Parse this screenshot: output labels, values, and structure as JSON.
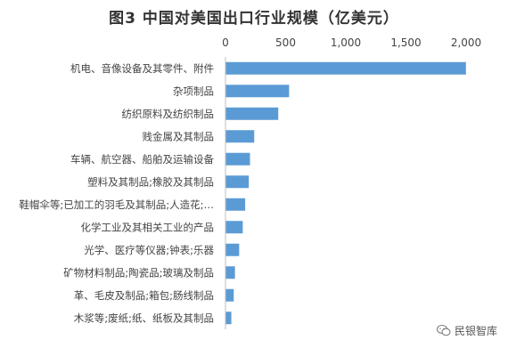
{
  "chart_data": {
    "type": "bar",
    "orientation": "horizontal",
    "title": "图3  中国对美国出口行业规模（亿美元）",
    "x_ticks": [
      "0",
      "500",
      "1,000",
      "1,500",
      "2,000"
    ],
    "xlim": [
      0,
      2000
    ],
    "x_axis_position": "top",
    "grid": false,
    "color": "#5b9bd5",
    "categories": [
      "机电、音像设备及其零件、附件",
      "杂项制品",
      "纺织原料及纺织制品",
      "贱金属及其制品",
      "车辆、航空器、船舶及运输设备",
      "塑料及其制品;橡胶及其制品",
      "鞋帽伞等;已加工的羽毛及其制品;人造花;…",
      "化学工业及其相关工业的产品",
      "光学、医疗等仪器;钟表;乐器",
      "矿物材料制品;陶瓷品;玻璃及制品",
      "革、毛皮及制品;箱包;肠线制品",
      "木浆等;废纸;纸、纸板及其制品"
    ],
    "values": [
      1995,
      525,
      435,
      235,
      200,
      190,
      160,
      140,
      110,
      75,
      65,
      45
    ]
  },
  "watermark": {
    "text": "民银智库",
    "icon": "wechat-icon"
  }
}
